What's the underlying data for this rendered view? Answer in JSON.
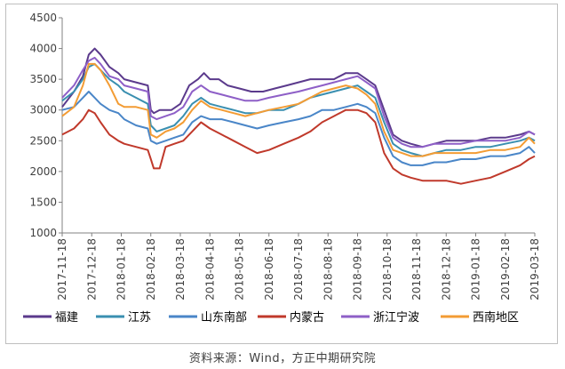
{
  "source": "资料来源：Wind，方正中期研究院",
  "chart_data": {
    "type": "line",
    "title": "",
    "xlabel": "",
    "ylabel": "",
    "ylim": [
      1000,
      4500
    ],
    "yticks": [
      1000,
      1500,
      2000,
      2500,
      3000,
      3500,
      4000,
      4500
    ],
    "xticks": [
      "2017-11-18",
      "2017-12-18",
      "2018-01-18",
      "2018-02-18",
      "2018-03-18",
      "2018-04-18",
      "2018-05-18",
      "2018-06-18",
      "2018-07-18",
      "2018-08-18",
      "2018-09-18",
      "2018-10-18",
      "2018-11-18",
      "2018-12-18",
      "2019-01-18",
      "2019-02-18",
      "2019-03-18"
    ],
    "grid": false,
    "legend_position": "bottom",
    "series": [
      {
        "name": "福建",
        "color": "#5b3a8c",
        "points": [
          [
            0,
            3050
          ],
          [
            0.4,
            3300
          ],
          [
            0.7,
            3550
          ],
          [
            0.9,
            3900
          ],
          [
            1.1,
            4000
          ],
          [
            1.3,
            3900
          ],
          [
            1.6,
            3700
          ],
          [
            1.9,
            3600
          ],
          [
            2.1,
            3500
          ],
          [
            2.5,
            3450
          ],
          [
            2.9,
            3400
          ],
          [
            3.0,
            3000
          ],
          [
            3.1,
            2950
          ],
          [
            3.3,
            3000
          ],
          [
            3.7,
            3000
          ],
          [
            4.0,
            3100
          ],
          [
            4.3,
            3400
          ],
          [
            4.6,
            3500
          ],
          [
            4.8,
            3600
          ],
          [
            5.0,
            3500
          ],
          [
            5.3,
            3500
          ],
          [
            5.6,
            3400
          ],
          [
            6.0,
            3350
          ],
          [
            6.4,
            3300
          ],
          [
            6.8,
            3300
          ],
          [
            7.2,
            3350
          ],
          [
            7.6,
            3400
          ],
          [
            8.0,
            3450
          ],
          [
            8.4,
            3500
          ],
          [
            8.8,
            3500
          ],
          [
            9.2,
            3500
          ],
          [
            9.6,
            3600
          ],
          [
            10.0,
            3600
          ],
          [
            10.3,
            3500
          ],
          [
            10.6,
            3400
          ],
          [
            10.9,
            3000
          ],
          [
            11.2,
            2600
          ],
          [
            11.5,
            2500
          ],
          [
            11.8,
            2450
          ],
          [
            12.2,
            2400
          ],
          [
            12.6,
            2450
          ],
          [
            13.0,
            2500
          ],
          [
            13.5,
            2500
          ],
          [
            14.0,
            2500
          ],
          [
            14.5,
            2550
          ],
          [
            15.0,
            2550
          ],
          [
            15.5,
            2600
          ],
          [
            15.8,
            2650
          ],
          [
            16.0,
            2600
          ]
        ]
      },
      {
        "name": "江苏",
        "color": "#3a8fb0",
        "points": [
          [
            0,
            3150
          ],
          [
            0.4,
            3300
          ],
          [
            0.7,
            3500
          ],
          [
            0.9,
            3700
          ],
          [
            1.1,
            3750
          ],
          [
            1.3,
            3650
          ],
          [
            1.6,
            3500
          ],
          [
            1.9,
            3400
          ],
          [
            2.1,
            3300
          ],
          [
            2.5,
            3200
          ],
          [
            2.9,
            3100
          ],
          [
            3.0,
            2750
          ],
          [
            3.2,
            2650
          ],
          [
            3.5,
            2700
          ],
          [
            3.8,
            2750
          ],
          [
            4.1,
            2900
          ],
          [
            4.4,
            3100
          ],
          [
            4.7,
            3200
          ],
          [
            5.0,
            3100
          ],
          [
            5.4,
            3050
          ],
          [
            5.8,
            3000
          ],
          [
            6.2,
            2950
          ],
          [
            6.6,
            2950
          ],
          [
            7.0,
            3000
          ],
          [
            7.5,
            3000
          ],
          [
            8.0,
            3100
          ],
          [
            8.4,
            3200
          ],
          [
            8.8,
            3250
          ],
          [
            9.2,
            3300
          ],
          [
            9.6,
            3350
          ],
          [
            10.0,
            3400
          ],
          [
            10.3,
            3300
          ],
          [
            10.6,
            3200
          ],
          [
            10.9,
            2800
          ],
          [
            11.2,
            2450
          ],
          [
            11.5,
            2350
          ],
          [
            11.8,
            2300
          ],
          [
            12.2,
            2250
          ],
          [
            12.6,
            2300
          ],
          [
            13.0,
            2350
          ],
          [
            13.5,
            2350
          ],
          [
            14.0,
            2400
          ],
          [
            14.5,
            2400
          ],
          [
            15.0,
            2450
          ],
          [
            15.5,
            2500
          ],
          [
            15.8,
            2550
          ],
          [
            16.0,
            2500
          ]
        ]
      },
      {
        "name": "山东南部",
        "color": "#4a86c8",
        "points": [
          [
            0,
            3000
          ],
          [
            0.4,
            3050
          ],
          [
            0.7,
            3200
          ],
          [
            0.9,
            3300
          ],
          [
            1.1,
            3200
          ],
          [
            1.3,
            3100
          ],
          [
            1.6,
            3000
          ],
          [
            1.9,
            2950
          ],
          [
            2.1,
            2850
          ],
          [
            2.5,
            2750
          ],
          [
            2.9,
            2700
          ],
          [
            3.0,
            2500
          ],
          [
            3.2,
            2450
          ],
          [
            3.5,
            2500
          ],
          [
            3.8,
            2550
          ],
          [
            4.1,
            2600
          ],
          [
            4.4,
            2800
          ],
          [
            4.7,
            2900
          ],
          [
            5.0,
            2850
          ],
          [
            5.4,
            2850
          ],
          [
            5.8,
            2800
          ],
          [
            6.2,
            2750
          ],
          [
            6.6,
            2700
          ],
          [
            7.0,
            2750
          ],
          [
            7.5,
            2800
          ],
          [
            8.0,
            2850
          ],
          [
            8.4,
            2900
          ],
          [
            8.8,
            3000
          ],
          [
            9.2,
            3000
          ],
          [
            9.6,
            3050
          ],
          [
            10.0,
            3100
          ],
          [
            10.3,
            3050
          ],
          [
            10.6,
            2950
          ],
          [
            10.9,
            2550
          ],
          [
            11.2,
            2250
          ],
          [
            11.5,
            2150
          ],
          [
            11.8,
            2100
          ],
          [
            12.2,
            2100
          ],
          [
            12.6,
            2150
          ],
          [
            13.0,
            2150
          ],
          [
            13.5,
            2200
          ],
          [
            14.0,
            2200
          ],
          [
            14.5,
            2250
          ],
          [
            15.0,
            2250
          ],
          [
            15.5,
            2300
          ],
          [
            15.8,
            2400
          ],
          [
            16.0,
            2300
          ]
        ]
      },
      {
        "name": "内蒙古",
        "color": "#c0392b",
        "points": [
          [
            0,
            2600
          ],
          [
            0.4,
            2700
          ],
          [
            0.7,
            2850
          ],
          [
            0.9,
            3000
          ],
          [
            1.1,
            2950
          ],
          [
            1.3,
            2800
          ],
          [
            1.6,
            2600
          ],
          [
            1.9,
            2500
          ],
          [
            2.1,
            2450
          ],
          [
            2.5,
            2400
          ],
          [
            2.9,
            2350
          ],
          [
            3.0,
            2200
          ],
          [
            3.1,
            2050
          ],
          [
            3.3,
            2050
          ],
          [
            3.5,
            2400
          ],
          [
            3.8,
            2450
          ],
          [
            4.1,
            2500
          ],
          [
            4.4,
            2650
          ],
          [
            4.7,
            2800
          ],
          [
            5.0,
            2700
          ],
          [
            5.4,
            2600
          ],
          [
            5.8,
            2500
          ],
          [
            6.2,
            2400
          ],
          [
            6.6,
            2300
          ],
          [
            7.0,
            2350
          ],
          [
            7.5,
            2450
          ],
          [
            8.0,
            2550
          ],
          [
            8.4,
            2650
          ],
          [
            8.8,
            2800
          ],
          [
            9.2,
            2900
          ],
          [
            9.6,
            3000
          ],
          [
            10.0,
            3000
          ],
          [
            10.3,
            2950
          ],
          [
            10.6,
            2800
          ],
          [
            10.9,
            2300
          ],
          [
            11.2,
            2050
          ],
          [
            11.5,
            1950
          ],
          [
            11.8,
            1900
          ],
          [
            12.2,
            1850
          ],
          [
            12.6,
            1850
          ],
          [
            13.0,
            1850
          ],
          [
            13.5,
            1800
          ],
          [
            14.0,
            1850
          ],
          [
            14.5,
            1900
          ],
          [
            15.0,
            2000
          ],
          [
            15.5,
            2100
          ],
          [
            15.8,
            2200
          ],
          [
            16.0,
            2250
          ]
        ]
      },
      {
        "name": "浙江宁波",
        "color": "#8e5fc7",
        "points": [
          [
            0,
            3200
          ],
          [
            0.4,
            3400
          ],
          [
            0.7,
            3650
          ],
          [
            0.9,
            3800
          ],
          [
            1.1,
            3850
          ],
          [
            1.3,
            3750
          ],
          [
            1.6,
            3550
          ],
          [
            1.9,
            3500
          ],
          [
            2.1,
            3400
          ],
          [
            2.5,
            3350
          ],
          [
            2.9,
            3300
          ],
          [
            3.0,
            2900
          ],
          [
            3.2,
            2850
          ],
          [
            3.5,
            2900
          ],
          [
            3.8,
            2950
          ],
          [
            4.1,
            3050
          ],
          [
            4.4,
            3300
          ],
          [
            4.7,
            3400
          ],
          [
            5.0,
            3300
          ],
          [
            5.4,
            3250
          ],
          [
            5.8,
            3200
          ],
          [
            6.2,
            3150
          ],
          [
            6.6,
            3150
          ],
          [
            7.0,
            3200
          ],
          [
            7.5,
            3250
          ],
          [
            8.0,
            3300
          ],
          [
            8.4,
            3350
          ],
          [
            8.8,
            3400
          ],
          [
            9.2,
            3450
          ],
          [
            9.6,
            3500
          ],
          [
            10.0,
            3550
          ],
          [
            10.3,
            3450
          ],
          [
            10.6,
            3350
          ],
          [
            10.9,
            2900
          ],
          [
            11.2,
            2550
          ],
          [
            11.5,
            2450
          ],
          [
            11.8,
            2400
          ],
          [
            12.2,
            2400
          ],
          [
            12.6,
            2450
          ],
          [
            13.0,
            2450
          ],
          [
            13.5,
            2450
          ],
          [
            14.0,
            2500
          ],
          [
            14.5,
            2500
          ],
          [
            15.0,
            2500
          ],
          [
            15.5,
            2550
          ],
          [
            15.8,
            2650
          ],
          [
            16.0,
            2600
          ]
        ]
      },
      {
        "name": "西南地区",
        "color": "#f39c34",
        "points": [
          [
            0,
            2900
          ],
          [
            0.4,
            3050
          ],
          [
            0.7,
            3400
          ],
          [
            0.9,
            3750
          ],
          [
            1.1,
            3750
          ],
          [
            1.3,
            3650
          ],
          [
            1.6,
            3400
          ],
          [
            1.9,
            3100
          ],
          [
            2.1,
            3050
          ],
          [
            2.5,
            3050
          ],
          [
            2.9,
            3000
          ],
          [
            3.0,
            2600
          ],
          [
            3.2,
            2550
          ],
          [
            3.5,
            2650
          ],
          [
            3.8,
            2700
          ],
          [
            4.1,
            2800
          ],
          [
            4.4,
            3000
          ],
          [
            4.7,
            3150
          ],
          [
            5.0,
            3050
          ],
          [
            5.4,
            3000
          ],
          [
            5.8,
            2950
          ],
          [
            6.2,
            2900
          ],
          [
            6.6,
            2950
          ],
          [
            7.0,
            3000
          ],
          [
            7.5,
            3050
          ],
          [
            8.0,
            3100
          ],
          [
            8.4,
            3200
          ],
          [
            8.8,
            3300
          ],
          [
            9.2,
            3350
          ],
          [
            9.6,
            3400
          ],
          [
            10.0,
            3350
          ],
          [
            10.3,
            3250
          ],
          [
            10.6,
            3100
          ],
          [
            10.9,
            2650
          ],
          [
            11.2,
            2350
          ],
          [
            11.5,
            2300
          ],
          [
            11.8,
            2250
          ],
          [
            12.2,
            2250
          ],
          [
            12.6,
            2300
          ],
          [
            13.0,
            2300
          ],
          [
            13.5,
            2300
          ],
          [
            14.0,
            2300
          ],
          [
            14.5,
            2350
          ],
          [
            15.0,
            2350
          ],
          [
            15.5,
            2400
          ],
          [
            15.8,
            2550
          ],
          [
            16.0,
            2450
          ]
        ]
      }
    ]
  }
}
